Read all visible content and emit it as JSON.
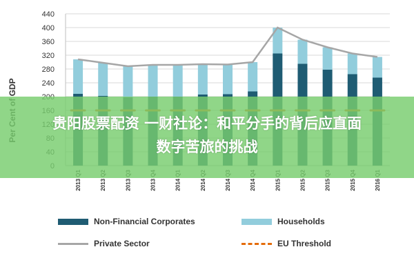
{
  "banner": {
    "line1": "贵阳股票配资 一财社论：和平分手的背后应直面",
    "line2": "数字苦旅的挑战"
  },
  "colors": {
    "nfc": "#1f5c73",
    "households": "#92cddc",
    "private": "#a6a6a6",
    "eu": "#e46c0a",
    "grid": "#d9d9d9"
  },
  "chart_data": {
    "type": "bar",
    "ylabel": "Per Cent of GDP",
    "ylim": [
      0,
      440
    ],
    "yticks": [
      0,
      40,
      80,
      120,
      160,
      200,
      240,
      280,
      320,
      360,
      400,
      440
    ],
    "categories": [
      "2013 Q1",
      "2013 Q2",
      "2013 Q3",
      "2013 Q4",
      "2014 Q1",
      "2014 Q2",
      "2014 Q3",
      "2014 Q4",
      "2015 Q1",
      "2015 Q2",
      "2015 Q3",
      "2015 Q4",
      "2016 Q1"
    ],
    "series": [
      {
        "name": "Non-Financial Corporates",
        "type": "stacked-bar",
        "values": [
          208,
          202,
          198,
          200,
          200,
          206,
          207,
          215,
          325,
          295,
          278,
          265,
          255
        ]
      },
      {
        "name": "Households",
        "type": "stacked-bar",
        "values": [
          100,
          96,
          90,
          92,
          92,
          88,
          86,
          85,
          75,
          70,
          65,
          60,
          60
        ]
      },
      {
        "name": "Private Sector",
        "type": "line",
        "values": [
          308,
          298,
          288,
          292,
          292,
          294,
          293,
          300,
          400,
          365,
          343,
          325,
          315
        ]
      },
      {
        "name": "EU Threshold",
        "type": "dashed-line",
        "values": [
          160,
          160,
          160,
          160,
          160,
          160,
          160,
          160,
          160,
          160,
          160,
          160,
          160
        ]
      }
    ]
  }
}
